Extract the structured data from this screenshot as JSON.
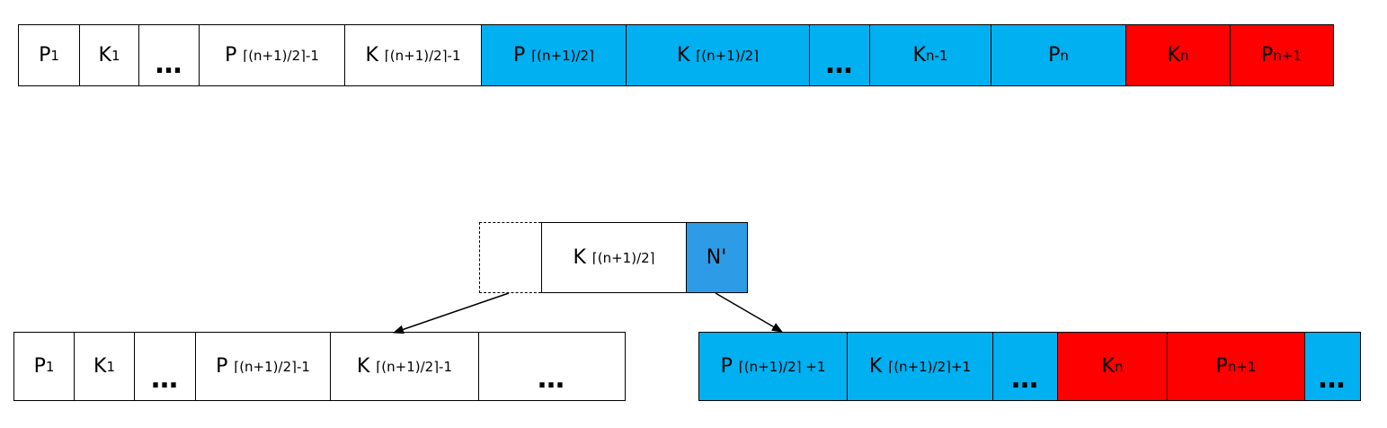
{
  "top_node": {
    "cells": [
      {
        "main": "P",
        "sub": "1",
        "color": "white"
      },
      {
        "main": "K",
        "sub": "1",
        "color": "white"
      },
      {
        "main": "…",
        "sub": "",
        "color": "white",
        "ellipsis": true
      },
      {
        "main": "P",
        "sub": "⌈(n+1)/2⌉-1",
        "color": "white"
      },
      {
        "main": "K",
        "sub": "⌈(n+1)/2⌉-1",
        "color": "white"
      },
      {
        "main": "P",
        "sub": "⌈(n+1)/2⌉",
        "color": "blue"
      },
      {
        "main": "K",
        "sub": "⌈(n+1)/2⌉",
        "color": "blue"
      },
      {
        "main": "…",
        "sub": "",
        "color": "blue",
        "ellipsis": true
      },
      {
        "main": "K",
        "sub": "n-1",
        "color": "blue"
      },
      {
        "main": "P",
        "sub": "n",
        "color": "blue"
      },
      {
        "main": "K",
        "sub": "n",
        "color": "red"
      },
      {
        "main": "P",
        "sub": "n+1",
        "color": "red"
      }
    ]
  },
  "parent_node": {
    "cells": [
      {
        "main": "",
        "sub": "",
        "color": "dashed"
      },
      {
        "main": "K",
        "sub": "⌈(n+1)/2⌉",
        "color": "white"
      },
      {
        "main": "N'",
        "sub": "",
        "color": "nblue"
      }
    ]
  },
  "left_node": {
    "cells": [
      {
        "main": "P",
        "sub": "1",
        "color": "white"
      },
      {
        "main": "K",
        "sub": "1",
        "color": "white"
      },
      {
        "main": "…",
        "sub": "",
        "color": "white",
        "ellipsis": true
      },
      {
        "main": "P",
        "sub": "⌈(n+1)/2⌉-1",
        "color": "white"
      },
      {
        "main": "K",
        "sub": "⌈(n+1)/2⌉-1",
        "color": "white"
      },
      {
        "main": "…",
        "sub": "",
        "color": "white",
        "ellipsis": true
      }
    ]
  },
  "right_node": {
    "cells": [
      {
        "main": "P",
        "sub": "⌈(n+1)/2⌉ +1",
        "color": "blue"
      },
      {
        "main": "K",
        "sub": "⌈(n+1)/2⌉+1",
        "color": "blue"
      },
      {
        "main": "…",
        "sub": "",
        "color": "blue",
        "ellipsis": true
      },
      {
        "main": "K",
        "sub": "n",
        "color": "red"
      },
      {
        "main": "P",
        "sub": "n+1",
        "color": "red"
      },
      {
        "main": "…",
        "sub": "",
        "color": "blue",
        "ellipsis": true
      }
    ]
  },
  "colors": {
    "blue": "#00b0f0",
    "red": "#ff0000",
    "nblue": "#2e9be6",
    "white": "#ffffff"
  }
}
